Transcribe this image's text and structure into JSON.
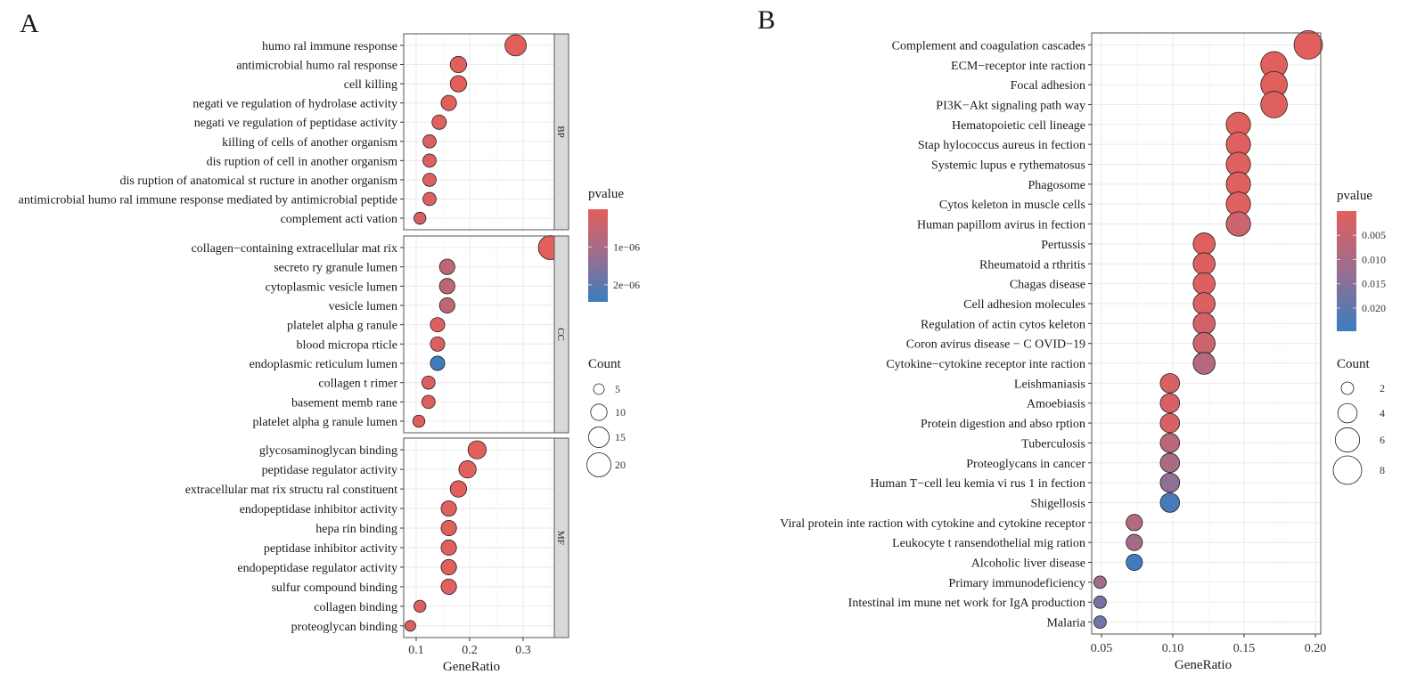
{
  "chart_data": [
    {
      "panel_label": "A",
      "type": "scatter",
      "xlabel": "GeneRatio",
      "xlim": [
        0.08,
        0.365
      ],
      "xticks": [
        0.1,
        0.2,
        0.3
      ],
      "xtick_labels": [
        "0.1",
        "0.2",
        "0.3"
      ],
      "grid": true,
      "facets": [
        {
          "name": "BP",
          "rows": [
            {
              "term": "humo ral immune response",
              "x": 0.286,
              "count": 16,
              "pvalue": 1e-09
            },
            {
              "term": "antimicrobial humo  ral response",
              "x": 0.179,
              "count": 10,
              "pvalue": 1e-08
            },
            {
              "term": "cell killing",
              "x": 0.179,
              "count": 10,
              "pvalue": 1e-08
            },
            {
              "term": "negati ve regulation of   hydrolase activity",
              "x": 0.161,
              "count": 9,
              "pvalue": 5e-08
            },
            {
              "term": "negati ve regulation of peptidase activity",
              "x": 0.143,
              "count": 8,
              "pvalue": 5e-08
            },
            {
              "term": "killing of cells of another organism",
              "x": 0.125,
              "count": 7,
              "pvalue": 1e-07
            },
            {
              "term": "dis ruption of cell in another organism",
              "x": 0.125,
              "count": 7,
              "pvalue": 1e-07
            },
            {
              "term": "dis ruption of anatomical st   ructure in another organism",
              "x": 0.125,
              "count": 7,
              "pvalue": 1e-07
            },
            {
              "term": "antimicrobial humo  ral immune response mediated      by antimicrobial peptide",
              "x": 0.125,
              "count": 7,
              "pvalue": 1e-07
            },
            {
              "term": "complement acti   vation",
              "x": 0.107,
              "count": 6,
              "pvalue": 2e-07
            }
          ]
        },
        {
          "name": "CC",
          "rows": [
            {
              "term": "collagen−containing    extracellular mat  rix",
              "x": 0.351,
              "count": 20,
              "pvalue": 1e-09
            },
            {
              "term": "secreto  ry granule lumen",
              "x": 0.158,
              "count": 9,
              "pvalue": 6e-07
            },
            {
              "term": "cytoplasmic   vesicle lumen",
              "x": 0.158,
              "count": 9,
              "pvalue": 6e-07
            },
            {
              "term": "vesicle lumen",
              "x": 0.158,
              "count": 9,
              "pvalue": 6e-07
            },
            {
              "term": "platelet alpha g   ranule",
              "x": 0.14,
              "count": 8,
              "pvalue": 1e-07
            },
            {
              "term": "blood micropa  rticle",
              "x": 0.14,
              "count": 8,
              "pvalue": 1e-07
            },
            {
              "term": "endoplasmic reticulum lumen",
              "x": 0.14,
              "count": 8,
              "pvalue": 2.4e-06
            },
            {
              "term": "collagen t  rimer",
              "x": 0.123,
              "count": 7,
              "pvalue": 1e-07
            },
            {
              "term": "basement memb    rane",
              "x": 0.123,
              "count": 7,
              "pvalue": 1e-07
            },
            {
              "term": "platelet alpha g   ranule lumen",
              "x": 0.105,
              "count": 6,
              "pvalue": 1e-07
            }
          ]
        },
        {
          "name": "MF",
          "rows": [
            {
              "term": "glycosaminoglycan binding",
              "x": 0.214,
              "count": 12,
              "pvalue": 1e-09
            },
            {
              "term": "peptidase regulator activity",
              "x": 0.196,
              "count": 11,
              "pvalue": 1e-08
            },
            {
              "term": "extracellular mat  rix structu ral constituent",
              "x": 0.179,
              "count": 10,
              "pvalue": 1e-08
            },
            {
              "term": "endopeptidase inhibitor activity",
              "x": 0.161,
              "count": 9,
              "pvalue": 5e-08
            },
            {
              "term": "hepa rin binding",
              "x": 0.161,
              "count": 9,
              "pvalue": 5e-08
            },
            {
              "term": "peptidase inhibitor activity",
              "x": 0.161,
              "count": 9,
              "pvalue": 5e-08
            },
            {
              "term": "endopeptidase regulator activity",
              "x": 0.161,
              "count": 9,
              "pvalue": 5e-08
            },
            {
              "term": "sulfur compound binding",
              "x": 0.161,
              "count": 9,
              "pvalue": 5e-08
            },
            {
              "term": "collagen binding",
              "x": 0.107,
              "count": 6,
              "pvalue": 1e-07
            },
            {
              "term": "proteoglycan binding",
              "x": 0.089,
              "count": 5,
              "pvalue": 1e-07
            }
          ]
        }
      ],
      "color_legend": {
        "title": "pvalue",
        "range": [
          0,
          2.45e-06
        ],
        "ticks": [
          1e-06,
          2e-06
        ],
        "tick_labels": [
          "1e−06",
          "2e−06"
        ],
        "low_color": "#e35f5c",
        "high_color": "#3a7dc0"
      },
      "size_legend": {
        "title": "Count",
        "values": [
          5,
          10,
          15,
          20
        ],
        "labels": [
          "5",
          "10",
          "15",
          "20"
        ]
      }
    },
    {
      "panel_label": "B",
      "type": "scatter",
      "xlabel": "GeneRatio",
      "xlim": [
        0.043,
        0.204
      ],
      "xticks": [
        0.05,
        0.1,
        0.15,
        0.2
      ],
      "xtick_labels": [
        "0.05",
        "0.10",
        "0.15",
        "0.20"
      ],
      "grid": true,
      "rows": [
        {
          "term": "Complement and coagulation cascades",
          "x": 0.195,
          "count": 8,
          "pvalue": 0.0002
        },
        {
          "term": "ECM−receptor inte   raction",
          "x": 0.171,
          "count": 7,
          "pvalue": 0.0003
        },
        {
          "term": "Focal adhesion",
          "x": 0.171,
          "count": 7,
          "pvalue": 0.0003
        },
        {
          "term": "PI3K−Akt signaling path   way",
          "x": 0.171,
          "count": 7,
          "pvalue": 0.0005
        },
        {
          "term": "Hematopoietic cell lineage",
          "x": 0.146,
          "count": 6,
          "pvalue": 0.0005
        },
        {
          "term": "Stap hylococcus aureus in    fection",
          "x": 0.146,
          "count": 6,
          "pvalue": 0.0005
        },
        {
          "term": "Systemic lupus e    rythematosus",
          "x": 0.146,
          "count": 6,
          "pvalue": 0.0006
        },
        {
          "term": "Phagosome",
          "x": 0.146,
          "count": 6,
          "pvalue": 0.0007
        },
        {
          "term": "Cytos keleton in   muscle cells",
          "x": 0.146,
          "count": 6,
          "pvalue": 0.0008
        },
        {
          "term": "Human papillom  avirus in fection",
          "x": 0.146,
          "count": 6,
          "pvalue": 0.004
        },
        {
          "term": "Pertussis",
          "x": 0.122,
          "count": 5,
          "pvalue": 0.0008
        },
        {
          "term": "Rheumatoid a   rthritis",
          "x": 0.122,
          "count": 5,
          "pvalue": 0.001
        },
        {
          "term": "Chagas disease",
          "x": 0.122,
          "count": 5,
          "pvalue": 0.001
        },
        {
          "term": "Cell adhesion molecules",
          "x": 0.122,
          "count": 5,
          "pvalue": 0.0015
        },
        {
          "term": "Regulation of actin cytos    keleton",
          "x": 0.122,
          "count": 5,
          "pvalue": 0.003
        },
        {
          "term": "Coron avirus disease − C    OVID−19",
          "x": 0.122,
          "count": 5,
          "pvalue": 0.004
        },
        {
          "term": "Cytokine−cytokine receptor inte    raction",
          "x": 0.122,
          "count": 5,
          "pvalue": 0.008
        },
        {
          "term": "Leishmaniasis",
          "x": 0.098,
          "count": 4,
          "pvalue": 0.0015
        },
        {
          "term": "Amoebiasis",
          "x": 0.098,
          "count": 4,
          "pvalue": 0.002
        },
        {
          "term": "Protein digestion and abso    rption",
          "x": 0.098,
          "count": 4,
          "pvalue": 0.002
        },
        {
          "term": "Tuberculosis",
          "x": 0.098,
          "count": 4,
          "pvalue": 0.007
        },
        {
          "term": "Proteoglycans in cancer",
          "x": 0.098,
          "count": 4,
          "pvalue": 0.01
        },
        {
          "term": "Human T−cell leu  kemia vi rus 1 in fection",
          "x": 0.098,
          "count": 4,
          "pvalue": 0.014
        },
        {
          "term": "Shigellosis",
          "x": 0.098,
          "count": 4,
          "pvalue": 0.023
        },
        {
          "term": "Viral protein inte  raction with cytokine and cytokine receptor",
          "x": 0.073,
          "count": 3,
          "pvalue": 0.008
        },
        {
          "term": "Leukocyte t ransendothelial mig   ration",
          "x": 0.073,
          "count": 3,
          "pvalue": 0.011
        },
        {
          "term": "Alcoholic liver disease",
          "x": 0.073,
          "count": 3,
          "pvalue": 0.024
        },
        {
          "term": "Primary immunodeficiency",
          "x": 0.049,
          "count": 2,
          "pvalue": 0.011
        },
        {
          "term": "Intestinal im mune net work for IgA production",
          "x": 0.049,
          "count": 2,
          "pvalue": 0.017
        },
        {
          "term": "Malaria",
          "x": 0.049,
          "count": 2,
          "pvalue": 0.018
        }
      ],
      "color_legend": {
        "title": "pvalue",
        "range": [
          0,
          0.0248
        ],
        "ticks": [
          0.005,
          0.01,
          0.015,
          0.02
        ],
        "tick_labels": [
          "0.005",
          "0.010",
          "0.015",
          "0.020"
        ],
        "low_color": "#e35f5c",
        "high_color": "#3a7dc0"
      },
      "size_legend": {
        "title": "Count",
        "values": [
          2,
          4,
          6,
          8
        ],
        "labels": [
          "2",
          "4",
          "6",
          "8"
        ]
      }
    }
  ]
}
